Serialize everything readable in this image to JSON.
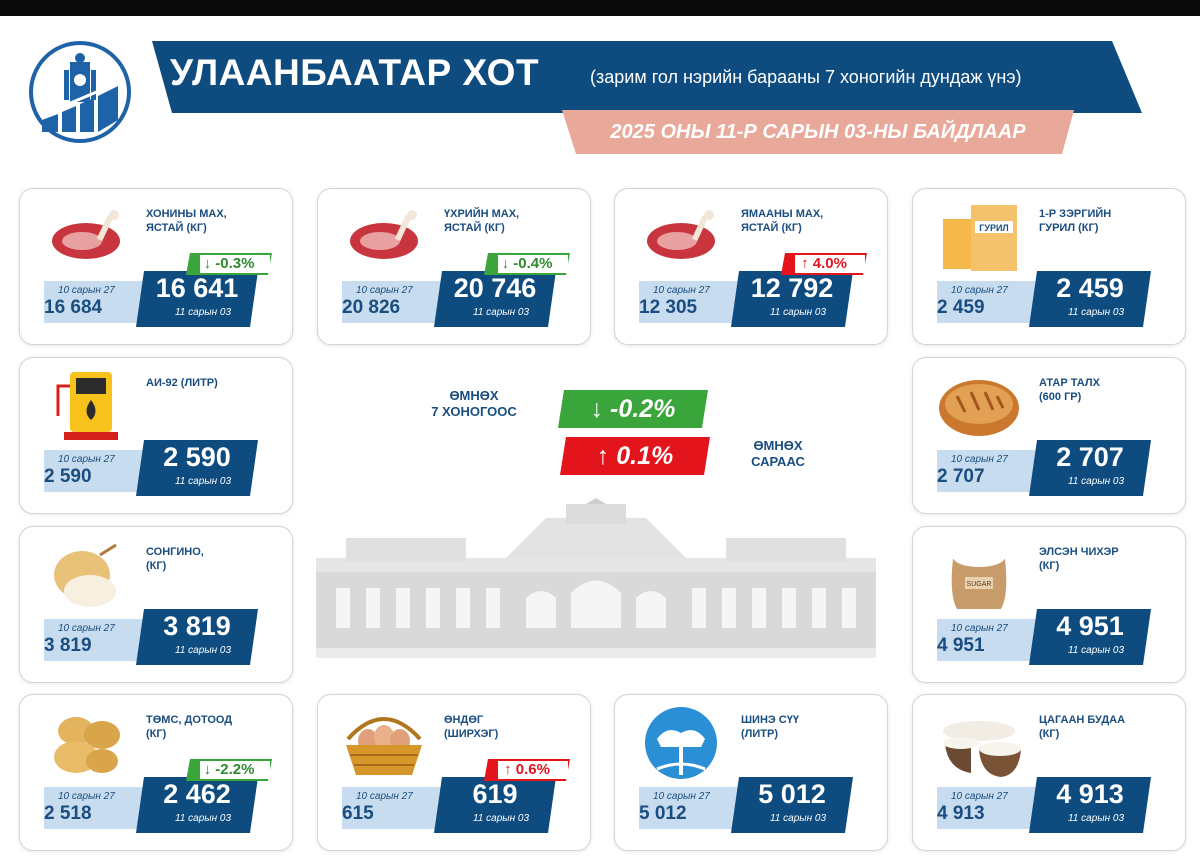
{
  "header": {
    "title": "УЛААНБААТАР ХОТ",
    "subtitle": "(зарим гол нэрийн барааны 7 хоногийн дундаж үнэ)",
    "date_banner": "2025 ОНЫ 11-Р САРЫН 03-НЫ БАЙДЛААР"
  },
  "summary": {
    "week_label": "ӨМНӨХ\n7 ХОНОГООС",
    "week_change": "↓ -0.2%",
    "month_label": "ӨМНӨХ\nСАРААС",
    "month_change": "↑ 0.1%"
  },
  "colors": {
    "navy": "#0e4c80",
    "light_blue": "#c7dcee",
    "salmon": "#e8a89a",
    "green": "#3aa53a",
    "red": "#e3141b",
    "text_blue": "#1a4d80"
  },
  "items": [
    {
      "name": "ХОНИНЫ МАХ,\nЯСТАЙ (КГ)",
      "icon": "lamb-meat-icon",
      "prev_date": "10 сарын 27",
      "prev_value": "16 684",
      "cur_value": "16 641",
      "cur_date": "11 сарын 03",
      "change": "↓ -0.3%",
      "trend": "down"
    },
    {
      "name": "ҮХРИЙН МАХ,\nЯСТАЙ (КГ)",
      "icon": "beef-meat-icon",
      "prev_date": "10 сарын 27",
      "prev_value": "20 826",
      "cur_value": "20 746",
      "cur_date": "11 сарын 03",
      "change": "↓ -0.4%",
      "trend": "down"
    },
    {
      "name": "ЯМААНЫ МАХ,\nЯСТАЙ (КГ)",
      "icon": "goat-meat-icon",
      "prev_date": "10 сарын 27",
      "prev_value": "12 305",
      "cur_value": "12 792",
      "cur_date": "11 сарын 03",
      "change": "↑ 4.0%",
      "trend": "up"
    },
    {
      "name": "1-Р ЗЭРГИЙН\nГУРИЛ (КГ)",
      "icon": "flour-bag-icon",
      "icon_text": "ГУРИЛ",
      "prev_date": "10 сарын 27",
      "prev_value": "2 459",
      "cur_value": "2 459",
      "cur_date": "11 сарын 03",
      "change": "",
      "trend": "none"
    },
    {
      "name": "АИ-92 (ЛИТР)",
      "icon": "fuel-pump-icon",
      "prev_date": "10 сарын 27",
      "prev_value": "2 590",
      "cur_value": "2 590",
      "cur_date": "11 сарын 03",
      "change": "",
      "trend": "none"
    },
    {
      "name": "АТАР ТАЛХ\n(600 ГР)",
      "icon": "bread-icon",
      "prev_date": "10 сарын 27",
      "prev_value": "2 707",
      "cur_value": "2 707",
      "cur_date": "11 сарын 03",
      "change": "",
      "trend": "none"
    },
    {
      "name": "СОНГИНО,\n(КГ)",
      "icon": "onion-icon",
      "prev_date": "10 сарын 27",
      "prev_value": "3 819",
      "cur_value": "3 819",
      "cur_date": "11 сарын 03",
      "change": "",
      "trend": "none"
    },
    {
      "name": "ЭЛСЭН ЧИХЭР\n(КГ)",
      "icon": "sugar-sack-icon",
      "icon_text": "SUGAR",
      "prev_date": "10 сарын 27",
      "prev_value": "4 951",
      "cur_value": "4 951",
      "cur_date": "11 сарын 03",
      "change": "",
      "trend": "none"
    },
    {
      "name": "ТӨМС, ДОТООД\n(КГ)",
      "icon": "potato-icon",
      "prev_date": "10 сарын 27",
      "prev_value": "2 518",
      "cur_value": "2 462",
      "cur_date": "11 сарын 03",
      "change": "↓ -2.2%",
      "trend": "down"
    },
    {
      "name": "ӨНДӨГ\n(ШИРХЭГ)",
      "icon": "egg-basket-icon",
      "prev_date": "10 сарын 27",
      "prev_value": "615",
      "cur_value": "619",
      "cur_date": "11 сарын 03",
      "change": "↑ 0.6%",
      "trend": "up"
    },
    {
      "name": "ШИНЭ СҮҮ\n(ЛИТР)",
      "icon": "milk-icon",
      "prev_date": "10 сарын 27",
      "prev_value": "5 012",
      "cur_value": "5 012",
      "cur_date": "11 сарын 03",
      "change": "",
      "trend": "none"
    },
    {
      "name": "ЦАГААН БУДАА\n(КГ)",
      "icon": "rice-bowl-icon",
      "prev_date": "10 сарын 27",
      "prev_value": "4 913",
      "cur_value": "4 913",
      "cur_date": "11 сарын 03",
      "change": "",
      "trend": "none"
    }
  ]
}
